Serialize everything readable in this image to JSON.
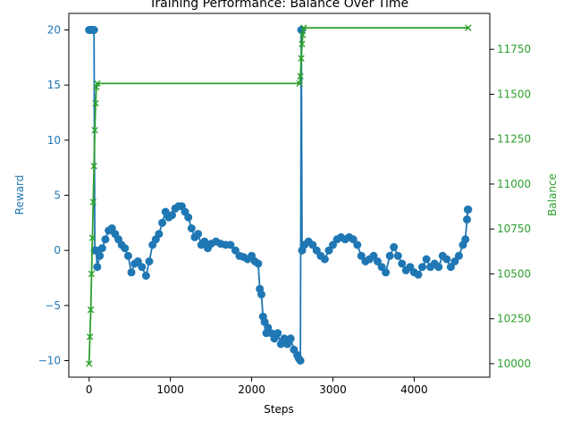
{
  "chart_data": {
    "type": "line",
    "title": "Training Performance: Balance Over Time",
    "xlabel": "Steps",
    "ylabel_left": "Reward",
    "ylabel_right": "Balance",
    "xlim": [
      -250,
      4930
    ],
    "ylim_left": [
      -11.5,
      21.5
    ],
    "ylim_right": [
      9925,
      11950
    ],
    "xticks": [
      0,
      1000,
      2000,
      3000,
      4000
    ],
    "yticks_left": [
      -10,
      -5,
      0,
      5,
      10,
      15,
      20
    ],
    "yticks_right": [
      10000,
      10250,
      10500,
      10750,
      11000,
      11250,
      11500,
      11750
    ],
    "grid": false,
    "colors": {
      "reward": "#1f77b4",
      "balance": "#2ca02c"
    },
    "series": [
      {
        "axis": "left",
        "marker": "circle",
        "color": "#1f77b4",
        "x": [
          0,
          20,
          40,
          60,
          70,
          85,
          100,
          130,
          160,
          200,
          240,
          280,
          320,
          360,
          400,
          440,
          480,
          520,
          560,
          600,
          650,
          700,
          740,
          780,
          820,
          860,
          900,
          940,
          980,
          1020,
          1060,
          1100,
          1140,
          1180,
          1220,
          1260,
          1300,
          1340,
          1380,
          1420,
          1460,
          1500,
          1560,
          1620,
          1680,
          1740,
          1800,
          1850,
          1900,
          1950,
          2000,
          2040,
          2080,
          2100,
          2120,
          2140,
          2160,
          2180,
          2200,
          2240,
          2280,
          2320,
          2360,
          2400,
          2440,
          2480,
          2520,
          2560,
          2580,
          2600,
          2610,
          2620,
          2650,
          2700,
          2750,
          2800,
          2850,
          2900,
          2950,
          3000,
          3050,
          3100,
          3150,
          3200,
          3250,
          3300,
          3350,
          3400,
          3450,
          3500,
          3550,
          3600,
          3650,
          3700,
          3750,
          3800,
          3850,
          3900,
          3950,
          4000,
          4050,
          4100,
          4150,
          4200,
          4250,
          4300,
          4350,
          4400,
          4450,
          4500,
          4550,
          4600,
          4630,
          4650,
          4660,
          4665
        ],
        "y": [
          20,
          20,
          20,
          20,
          0,
          0,
          -1.5,
          -0.5,
          0.2,
          1,
          1.8,
          2,
          1.5,
          1,
          0.5,
          0.2,
          -0.5,
          -2,
          -1.2,
          -1,
          -1.5,
          -2.3,
          -1,
          0.5,
          1,
          1.5,
          2.5,
          3.5,
          3,
          3.2,
          3.8,
          4,
          4,
          3.5,
          3,
          2,
          1.2,
          1.5,
          0.5,
          0.8,
          0.2,
          0.6,
          0.8,
          0.6,
          0.5,
          0.5,
          0,
          -0.5,
          -0.6,
          -0.8,
          -0.5,
          -1,
          -1.2,
          -3.5,
          -4,
          -6,
          -6.5,
          -7.5,
          -7,
          -7.5,
          -8,
          -7.5,
          -8.5,
          -8,
          -8.5,
          -8,
          -9,
          -9.5,
          -9.8,
          -10,
          20,
          0,
          0.5,
          0.8,
          0.5,
          0,
          -0.5,
          -0.8,
          0,
          0.5,
          1,
          1.2,
          1,
          1.2,
          1,
          0.5,
          -0.5,
          -1,
          -0.8,
          -0.5,
          -1,
          -1.5,
          -2,
          -0.5,
          0.3,
          -0.5,
          -1.2,
          -1.8,
          -1.5,
          -2,
          -2.2,
          -1.5,
          -0.8,
          -1.5,
          -1.2,
          -1.5,
          -0.5,
          -0.8,
          -1.5,
          -1,
          -0.5,
          0.5,
          1,
          2.8,
          3.7,
          3.7
        ]
      },
      {
        "axis": "right",
        "marker": "x",
        "color": "#2ca02c",
        "x": [
          0,
          10,
          20,
          30,
          40,
          50,
          60,
          70,
          80,
          90,
          100,
          2590,
          2600,
          2610,
          2620,
          2630,
          2640,
          4665
        ],
        "y": [
          10000,
          10150,
          10300,
          10500,
          10700,
          10900,
          11100,
          11300,
          11450,
          11540,
          11560,
          11560,
          11600,
          11700,
          11780,
          11830,
          11870,
          11870
        ]
      }
    ]
  }
}
